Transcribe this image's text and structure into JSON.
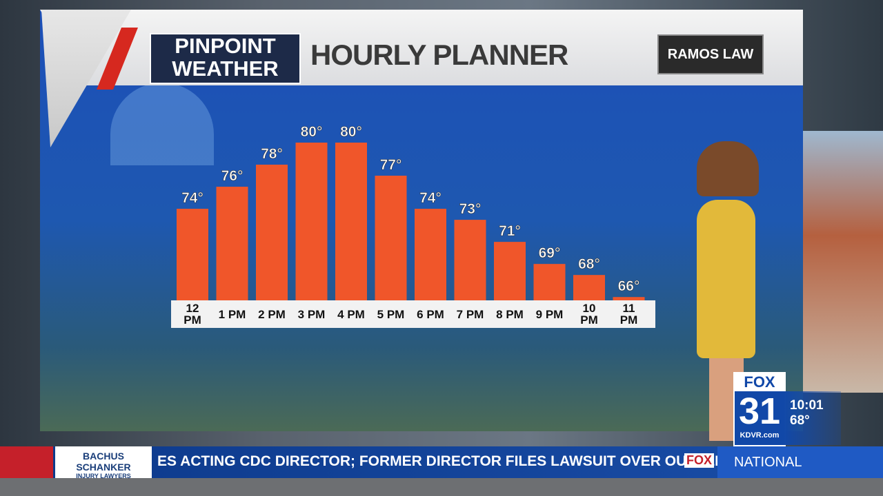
{
  "header": {
    "logo_top": "PINPOINT",
    "logo_bottom": "WEATHER",
    "title": "HOURLY PLANNER",
    "sponsor": "RAMOS LAW"
  },
  "chart_data": {
    "type": "bar",
    "categories": [
      "12 PM",
      "1 PM",
      "2 PM",
      "3 PM",
      "4 PM",
      "5 PM",
      "6 PM",
      "7 PM",
      "8 PM",
      "9 PM",
      "10 PM",
      "11 PM"
    ],
    "values": [
      74,
      76,
      78,
      80,
      80,
      77,
      74,
      73,
      71,
      69,
      68,
      66
    ],
    "value_labels": [
      "74°",
      "76°",
      "78°",
      "80°",
      "80°",
      "77°",
      "74°",
      "73°",
      "71°",
      "69°",
      "68°",
      "66°"
    ],
    "color": "#f0562a",
    "ylim": [
      65.7,
      80
    ]
  },
  "bug": {
    "network": "FOX",
    "channel": "31",
    "site": "KDVR.com",
    "time": "10:01",
    "temp": "68°"
  },
  "ticker": {
    "sponsor_top": "BACHUS SCHANKER",
    "sponsor_bottom": "INJURY LAWYERS",
    "headline": "ES ACTING CDC DIRECTOR; FORMER DIRECTOR FILES LAWSUIT OVER OUSTER",
    "network": "FOX",
    "section": "NATIONAL"
  }
}
